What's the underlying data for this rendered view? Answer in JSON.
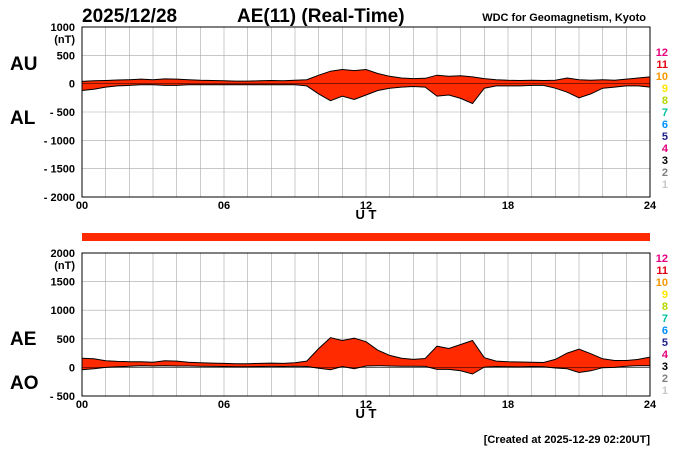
{
  "header": {
    "date": "2025/12/28",
    "title": "AE(11) (Real-Time)",
    "source": "WDC for Geomagnetism, Kyoto"
  },
  "footer": {
    "created": "[Created at 2025-12-29 02:20UT]"
  },
  "station_counts": {
    "labels": [
      "12",
      "11",
      "10",
      "9",
      "8",
      "7",
      "6",
      "5",
      "4",
      "3",
      "2",
      "1"
    ],
    "colors": [
      "#e6007e",
      "#e60012",
      "#f39800",
      "#ffe600",
      "#b3d800",
      "#00c0a0",
      "#0090ff",
      "#1d2088",
      "#e4007f",
      "#000000",
      "#7f7f7f",
      "#c8c8c8"
    ]
  },
  "chart_data": [
    {
      "type": "area",
      "name": "AU-AL panel",
      "unit_label": "(nT)",
      "upper_label": "AU",
      "lower_label": "AL",
      "xlabel": "U T",
      "x_ticks": [
        0,
        6,
        12,
        18,
        24
      ],
      "x_tick_labels": [
        "00",
        "06",
        "12",
        "18",
        "24"
      ],
      "xlim": [
        0,
        24
      ],
      "ylim": [
        -2000,
        1000
      ],
      "y_ticks": [
        1000,
        500,
        0,
        -500,
        -1000,
        -1500,
        -2000
      ],
      "y_tick_labels": [
        "1000",
        "500",
        "0",
        "- 500",
        "- 1000",
        "- 1500",
        "- 2000"
      ],
      "fill_color": "#ff2a00",
      "grid": true,
      "x": [
        0,
        0.5,
        1,
        1.5,
        2,
        2.5,
        3,
        3.5,
        4,
        4.5,
        5,
        5.5,
        6,
        6.5,
        7,
        7.5,
        8,
        8.5,
        9,
        9.5,
        10,
        10.5,
        11,
        11.5,
        12,
        12.5,
        13,
        13.5,
        14,
        14.5,
        15,
        15.5,
        16,
        16.5,
        17,
        17.5,
        18,
        18.5,
        19,
        19.5,
        20,
        20.5,
        21,
        21.5,
        22,
        22.5,
        23,
        23.5,
        24
      ],
      "series": [
        {
          "name": "AU",
          "values": [
            40,
            50,
            55,
            65,
            70,
            80,
            70,
            85,
            80,
            70,
            60,
            55,
            50,
            45,
            45,
            50,
            55,
            50,
            60,
            70,
            150,
            220,
            250,
            230,
            250,
            180,
            130,
            100,
            90,
            95,
            150,
            130,
            140,
            120,
            90,
            70,
            60,
            55,
            60,
            55,
            60,
            100,
            70,
            60,
            70,
            60,
            80,
            100,
            120
          ]
        },
        {
          "name": "AL",
          "values": [
            -120,
            -100,
            -60,
            -40,
            -30,
            -20,
            -20,
            -30,
            -30,
            -20,
            -20,
            -20,
            -20,
            -20,
            -20,
            -20,
            -20,
            -20,
            -20,
            -40,
            -180,
            -300,
            -220,
            -280,
            -200,
            -120,
            -80,
            -60,
            -50,
            -60,
            -220,
            -200,
            -260,
            -350,
            -80,
            -40,
            -40,
            -40,
            -30,
            -30,
            -80,
            -150,
            -250,
            -180,
            -80,
            -60,
            -40,
            -40,
            -60
          ]
        }
      ]
    },
    {
      "type": "area",
      "name": "AE-AO panel",
      "unit_label": "(nT)",
      "upper_label": "AE",
      "lower_label": "AO",
      "xlabel": "U T",
      "x_ticks": [
        0,
        6,
        12,
        18,
        24
      ],
      "x_tick_labels": [
        "00",
        "06",
        "12",
        "18",
        "24"
      ],
      "xlim": [
        0,
        24
      ],
      "ylim": [
        -500,
        2000
      ],
      "y_ticks": [
        2000,
        1500,
        1000,
        500,
        0,
        -500
      ],
      "y_tick_labels": [
        "2000",
        "1500",
        "1000",
        "500",
        "0",
        "- 500"
      ],
      "fill_color": "#ff2a00",
      "grid": true,
      "x": [
        0,
        0.5,
        1,
        1.5,
        2,
        2.5,
        3,
        3.5,
        4,
        4.5,
        5,
        5.5,
        6,
        6.5,
        7,
        7.5,
        8,
        8.5,
        9,
        9.5,
        10,
        10.5,
        11,
        11.5,
        12,
        12.5,
        13,
        13.5,
        14,
        14.5,
        15,
        15.5,
        16,
        16.5,
        17,
        17.5,
        18,
        18.5,
        19,
        19.5,
        20,
        20.5,
        21,
        21.5,
        22,
        22.5,
        23,
        23.5,
        24
      ],
      "series": [
        {
          "name": "AE",
          "values": [
            160,
            150,
            115,
            105,
            100,
            100,
            90,
            115,
            110,
            90,
            80,
            75,
            70,
            65,
            65,
            70,
            75,
            70,
            80,
            110,
            330,
            520,
            470,
            510,
            450,
            300,
            210,
            160,
            140,
            155,
            370,
            330,
            400,
            470,
            170,
            110,
            100,
            95,
            90,
            85,
            140,
            250,
            320,
            240,
            150,
            120,
            120,
            140,
            180
          ]
        },
        {
          "name": "AO",
          "values": [
            -40,
            -25,
            0,
            12,
            20,
            30,
            25,
            28,
            25,
            25,
            20,
            18,
            15,
            12,
            12,
            15,
            18,
            15,
            20,
            15,
            -15,
            -40,
            15,
            -25,
            25,
            30,
            25,
            20,
            20,
            18,
            -35,
            -35,
            -60,
            -115,
            5,
            15,
            10,
            8,
            15,
            12,
            -10,
            -25,
            -90,
            -60,
            -5,
            0,
            20,
            30,
            30
          ]
        }
      ]
    }
  ]
}
